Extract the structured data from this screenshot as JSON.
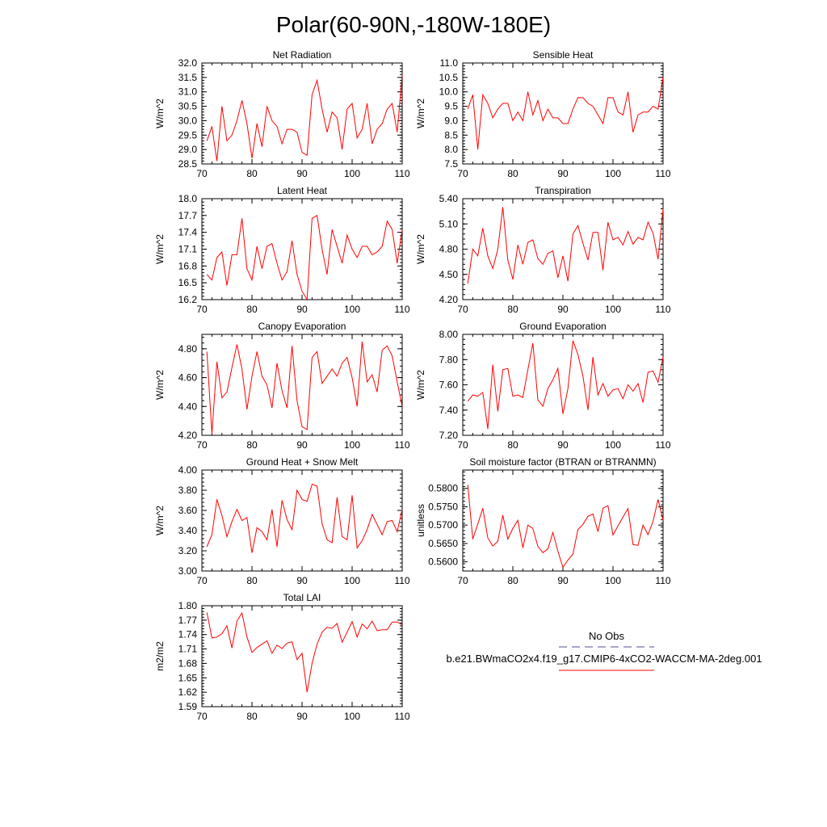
{
  "page": {
    "title": "Polar(60-90N,-180W-180E)"
  },
  "legend": {
    "obs_label": "No Obs",
    "obs_color": "#4d4d99",
    "case_label": "b.e21.BWmaCO2x4.f19_g17.CMIP6-4xCO2-WACCM-MA-2deg.001",
    "case_color": "#ff0000"
  },
  "chart_data": [
    {
      "type": "line",
      "title": "Net Radiation",
      "ylabel": "W/m^2",
      "xlim": [
        70,
        110
      ],
      "xticks": [
        70,
        80,
        90,
        100,
        110
      ],
      "ylim": [
        28.5,
        32.0
      ],
      "yticks": [
        "28.5",
        "29.0",
        "29.5",
        "30.0",
        "30.5",
        "31.0",
        "31.5",
        "32.0"
      ],
      "x_start": 71,
      "series": [
        {
          "color": "#ff0000",
          "values": [
            29.3,
            29.8,
            28.6,
            30.5,
            29.3,
            29.5,
            30.0,
            30.7,
            29.9,
            28.7,
            29.9,
            29.1,
            30.5,
            30.0,
            29.8,
            29.2,
            29.7,
            29.7,
            29.6,
            28.9,
            28.8,
            30.9,
            31.4,
            30.4,
            29.6,
            30.3,
            30.1,
            29.0,
            30.4,
            30.6,
            29.4,
            29.7,
            30.6,
            29.2,
            29.7,
            29.9,
            30.4,
            30.6,
            29.6,
            31.6
          ]
        }
      ]
    },
    {
      "type": "line",
      "title": "Sensible Heat",
      "ylabel": "W/m^2",
      "xlim": [
        70,
        110
      ],
      "xticks": [
        70,
        80,
        90,
        100,
        110
      ],
      "ylim": [
        7.5,
        11.0
      ],
      "yticks": [
        "7.5",
        "8.0",
        "8.5",
        "9.0",
        "9.5",
        "10.0",
        "10.5",
        "11.0"
      ],
      "x_start": 71,
      "series": [
        {
          "color": "#ff0000",
          "values": [
            9.4,
            9.9,
            8.0,
            9.9,
            9.6,
            9.1,
            9.4,
            9.6,
            9.6,
            9.0,
            9.3,
            9.0,
            10.0,
            9.2,
            9.7,
            9.0,
            9.4,
            9.1,
            9.1,
            8.9,
            8.9,
            9.4,
            9.8,
            9.8,
            9.6,
            9.5,
            9.2,
            8.9,
            9.8,
            9.8,
            9.3,
            9.2,
            10.0,
            8.6,
            9.2,
            9.3,
            9.3,
            9.5,
            9.4,
            10.5
          ]
        }
      ]
    },
    {
      "type": "line",
      "title": "Latent Heat",
      "ylabel": "W/m^2",
      "xlim": [
        70,
        110
      ],
      "xticks": [
        70,
        80,
        90,
        100,
        110
      ],
      "ylim": [
        16.2,
        18.0
      ],
      "yticks": [
        "16.2",
        "16.5",
        "16.8",
        "17.1",
        "17.4",
        "17.7",
        "18.0"
      ],
      "x_start": 71,
      "series": [
        {
          "color": "#ff0000",
          "values": [
            16.65,
            16.55,
            16.95,
            17.05,
            16.45,
            17.0,
            17.0,
            17.65,
            16.75,
            16.55,
            17.15,
            16.75,
            17.15,
            17.2,
            16.85,
            16.55,
            16.7,
            17.25,
            16.65,
            16.35,
            16.2,
            17.65,
            17.7,
            17.1,
            16.65,
            17.45,
            17.15,
            16.85,
            17.35,
            17.1,
            16.95,
            17.15,
            17.15,
            17.0,
            17.05,
            17.15,
            17.6,
            17.45,
            16.85,
            17.45
          ]
        }
      ]
    },
    {
      "type": "line",
      "title": "Transpiration",
      "ylabel": "W/m^2",
      "xlim": [
        70,
        110
      ],
      "xticks": [
        70,
        80,
        90,
        100,
        110
      ],
      "ylim": [
        4.2,
        5.4
      ],
      "yticks": [
        "4.20",
        "4.50",
        "4.80",
        "5.10",
        "5.40"
      ],
      "x_start": 71,
      "series": [
        {
          "color": "#ff0000",
          "values": [
            4.39,
            4.8,
            4.72,
            5.05,
            4.72,
            4.57,
            4.8,
            5.3,
            4.67,
            4.44,
            4.85,
            4.62,
            4.88,
            4.91,
            4.69,
            4.62,
            4.75,
            4.78,
            4.46,
            4.72,
            4.42,
            4.98,
            5.08,
            4.87,
            4.67,
            5.0,
            5.0,
            4.55,
            5.12,
            4.91,
            4.94,
            4.85,
            5.01,
            4.86,
            4.94,
            4.91,
            5.12,
            4.99,
            4.68,
            5.28
          ]
        }
      ]
    },
    {
      "type": "line",
      "title": "Canopy Evaporation",
      "ylabel": "W/m^2",
      "xlim": [
        70,
        110
      ],
      "xticks": [
        70,
        80,
        90,
        100,
        110
      ],
      "ylim": [
        4.2,
        4.9
      ],
      "yticks": [
        "4.20",
        "4.40",
        "4.60",
        "4.80"
      ],
      "x_start": 71,
      "series": [
        {
          "color": "#ff0000",
          "values": [
            4.78,
            4.21,
            4.71,
            4.46,
            4.5,
            4.67,
            4.83,
            4.66,
            4.38,
            4.61,
            4.78,
            4.61,
            4.55,
            4.39,
            4.7,
            4.51,
            4.39,
            4.82,
            4.44,
            4.26,
            4.24,
            4.74,
            4.78,
            4.56,
            4.61,
            4.66,
            4.61,
            4.7,
            4.74,
            4.6,
            4.4,
            4.85,
            4.57,
            4.62,
            4.5,
            4.79,
            4.82,
            4.75,
            4.57,
            4.4
          ]
        }
      ]
    },
    {
      "type": "line",
      "title": "Ground Evaporation",
      "ylabel": "W/m^2",
      "xlim": [
        70,
        110
      ],
      "xticks": [
        70,
        80,
        90,
        100,
        110
      ],
      "ylim": [
        7.2,
        8.0
      ],
      "yticks": [
        "7.20",
        "7.40",
        "7.60",
        "7.80",
        "8.00"
      ],
      "x_start": 71,
      "series": [
        {
          "color": "#ff0000",
          "values": [
            7.47,
            7.52,
            7.51,
            7.54,
            7.25,
            7.76,
            7.39,
            7.72,
            7.73,
            7.51,
            7.52,
            7.5,
            7.72,
            7.93,
            7.48,
            7.43,
            7.57,
            7.64,
            7.73,
            7.37,
            7.57,
            7.95,
            7.84,
            7.67,
            7.4,
            7.82,
            7.52,
            7.61,
            7.51,
            7.56,
            7.57,
            7.49,
            7.6,
            7.55,
            7.61,
            7.46,
            7.7,
            7.71,
            7.62,
            7.82
          ]
        }
      ]
    },
    {
      "type": "line",
      "title": "Ground Heat + Snow Melt",
      "ylabel": "W/m^2",
      "xlim": [
        70,
        110
      ],
      "xticks": [
        70,
        80,
        90,
        100,
        110
      ],
      "ylim": [
        3.0,
        4.0
      ],
      "yticks": [
        "3.00",
        "3.20",
        "3.40",
        "3.60",
        "3.80",
        "4.00"
      ],
      "x_start": 71,
      "series": [
        {
          "color": "#ff0000",
          "values": [
            3.24,
            3.36,
            3.71,
            3.55,
            3.34,
            3.49,
            3.61,
            3.5,
            3.53,
            3.18,
            3.43,
            3.39,
            3.31,
            3.61,
            3.24,
            3.7,
            3.51,
            3.41,
            3.8,
            3.71,
            3.69,
            3.86,
            3.84,
            3.47,
            3.31,
            3.28,
            3.73,
            3.34,
            3.31,
            3.75,
            3.23,
            3.3,
            3.41,
            3.56,
            3.46,
            3.36,
            3.49,
            3.5,
            3.39,
            3.61
          ]
        }
      ]
    },
    {
      "type": "line",
      "title": "Soil moisture factor (BTRAN or BTRANMN)",
      "ylabel": "unitless",
      "xlim": [
        70,
        110
      ],
      "xticks": [
        70,
        80,
        90,
        100,
        110
      ],
      "ylim": [
        0.5575,
        0.585
      ],
      "yticks": [
        "0.5600",
        "0.5650",
        "0.5700",
        "0.5750",
        "0.5800"
      ],
      "x_start": 71,
      "series": [
        {
          "color": "#ff0000",
          "values": [
            0.581,
            0.5662,
            0.5703,
            0.5746,
            0.5665,
            0.5643,
            0.5656,
            0.5727,
            0.5662,
            0.5691,
            0.5713,
            0.5638,
            0.57,
            0.5691,
            0.5642,
            0.5625,
            0.5635,
            0.568,
            0.5629,
            0.5585,
            0.5605,
            0.5621,
            0.5688,
            0.5702,
            0.5724,
            0.573,
            0.5682,
            0.5746,
            0.5753,
            0.5673,
            0.5698,
            0.5722,
            0.5745,
            0.5647,
            0.5645,
            0.57,
            0.5674,
            0.571,
            0.577,
            0.5713
          ]
        }
      ]
    },
    {
      "type": "line",
      "title": "Total LAI",
      "ylabel": "m2/m2",
      "xlim": [
        70,
        110
      ],
      "xticks": [
        70,
        80,
        90,
        100,
        110
      ],
      "ylim": [
        1.59,
        1.8
      ],
      "yticks": [
        "1.59",
        "1.62",
        "1.65",
        "1.68",
        "1.71",
        "1.74",
        "1.77",
        "1.80"
      ],
      "x_start": 71,
      "series": [
        {
          "color": "#ff0000",
          "values": [
            1.786,
            1.733,
            1.735,
            1.742,
            1.758,
            1.712,
            1.768,
            1.785,
            1.735,
            1.703,
            1.713,
            1.72,
            1.727,
            1.701,
            1.718,
            1.711,
            1.722,
            1.725,
            1.688,
            1.701,
            1.62,
            1.68,
            1.72,
            1.745,
            1.755,
            1.753,
            1.763,
            1.724,
            1.745,
            1.767,
            1.735,
            1.762,
            1.752,
            1.768,
            1.748,
            1.75,
            1.75,
            1.766,
            1.766,
            1.76
          ]
        }
      ]
    }
  ]
}
